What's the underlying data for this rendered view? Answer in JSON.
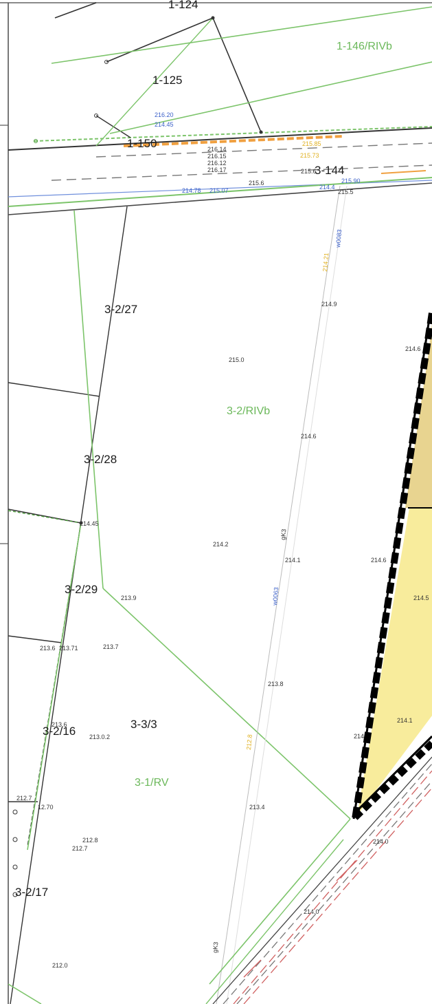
{
  "colors": {
    "parcel_line": "#3a3a3a",
    "landuse_line": "#7cc46a",
    "landuse_text": "#6bb85a",
    "blue_text": "#3a5fc8",
    "yellow_text": "#e0b020",
    "orange_road": "#f0a040",
    "red_dashed": "#d06060",
    "yellow_fill_light": "#f8ec9c",
    "yellow_fill_dark": "#e8d490",
    "boundary_black": "#000000"
  },
  "parcels": [
    {
      "label": "1-124"
    },
    {
      "label": "1-125"
    },
    {
      "label": "1-150"
    },
    {
      "label": "3-144"
    },
    {
      "label": "3-2/27"
    },
    {
      "label": "3-2/28"
    },
    {
      "label": "3-2/29"
    },
    {
      "label": "3-2/16"
    },
    {
      "label": "3-3/3"
    },
    {
      "label": "3-2/17"
    }
  ],
  "landuse": [
    {
      "label": "1-146/RIVb"
    },
    {
      "label": "3-2/RIVb"
    },
    {
      "label": "3-1/RV"
    }
  ],
  "elevations_black": [
    "215.6",
    "214.9",
    "214.6",
    "215.0",
    "214.6",
    "214.45",
    "214.2",
    "214.1",
    "214.6",
    "214.5",
    "213.9",
    "213.6",
    "213.71",
    "213.7",
    "213.8",
    "214.1",
    "214",
    "213.4",
    "212.7",
    "12.70",
    "212.8",
    "212.7",
    "214.0",
    "214.0",
    "212.0",
    "213.0.2",
    "213.6",
    "215.5"
  ],
  "elevations_blue": [
    "216.20",
    "214.45",
    "214.78",
    "215.07",
    "214.4",
    "215.90"
  ],
  "elevations_yellow": [
    "215.73",
    "215.85"
  ],
  "road_small_text": [
    "216.14",
    "216.15",
    "216.12",
    "216.17",
    "215.6"
  ],
  "utility_labels": {
    "blue_1": "w0083",
    "blue_2": "w0063",
    "yellow_1": "214.21",
    "yellow_2": "212.8",
    "black_1": "gK3",
    "black_2": "gK3"
  }
}
